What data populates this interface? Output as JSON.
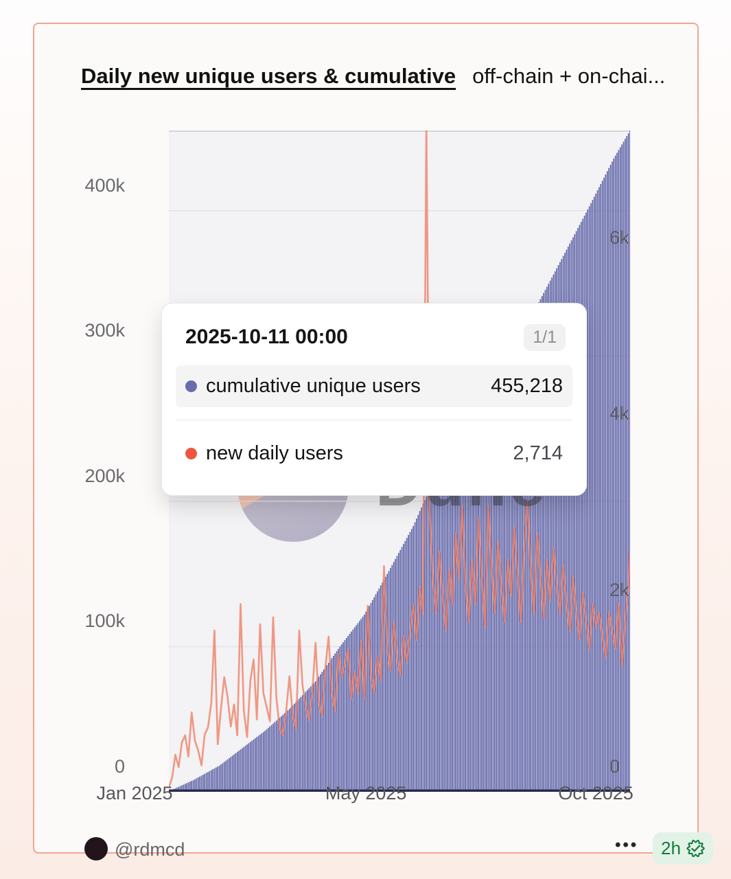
{
  "card": {
    "title": "Daily new unique users & cumulative",
    "subtitle": "off-chain + on-chai...",
    "border_color": "#f2a492"
  },
  "tooltip": {
    "date": "2025-10-11 00:00",
    "pagination": "1/1",
    "rows": [
      {
        "label": "cumulative unique users",
        "value": "455,218",
        "dot_color": "#676cb0",
        "highlighted": true
      },
      {
        "label": "new daily users",
        "value": "2,714",
        "dot_color": "#f0563d",
        "highlighted": false
      }
    ]
  },
  "watermark": {
    "text": "Dune"
  },
  "footer": {
    "handle": "@rdmcd",
    "menu_icon": "•••",
    "age_badge": "2h",
    "badge_icon": "verified-seal-check",
    "badge_color": "#187a42"
  },
  "chart_data": {
    "type": "combo",
    "title": "Daily new unique users & cumulative",
    "x_start_date": "2025-01-01",
    "x_end_date": "2025-10-11",
    "x_days": 283,
    "x_ticks": [
      {
        "label": "Jan 2025",
        "day": 0
      },
      {
        "label": "May 2025",
        "day": 142
      },
      {
        "label": "Oct 2025",
        "day": 283
      }
    ],
    "left_axis": {
      "max": 455218,
      "ticks": [
        {
          "label": "0",
          "value": 0
        },
        {
          "label": "100k",
          "value": 100000
        },
        {
          "label": "200k",
          "value": 200000
        },
        {
          "label": "300k",
          "value": 300000
        },
        {
          "label": "400k",
          "value": 400000
        }
      ]
    },
    "right_axis": {
      "max": 7500,
      "ticks": [
        {
          "label": "0",
          "value": 0
        },
        {
          "label": "2k",
          "value": 2000
        },
        {
          "label": "4k",
          "value": 4000
        },
        {
          "label": "6k",
          "value": 6000
        }
      ]
    },
    "grid": true,
    "legend_position": "tooltip-only",
    "series": [
      {
        "name": "cumulative unique users",
        "type": "area-bars",
        "axis": "left",
        "color": "#565ba3",
        "final_value": 455218,
        "anchors": [
          [
            0,
            400
          ],
          [
            15,
            8000
          ],
          [
            31,
            18000
          ],
          [
            45,
            30000
          ],
          [
            59,
            42000
          ],
          [
            74,
            57000
          ],
          [
            90,
            76000
          ],
          [
            105,
            100000
          ],
          [
            120,
            122000
          ],
          [
            135,
            152000
          ],
          [
            150,
            183000
          ],
          [
            159,
            206000
          ],
          [
            166,
            221000
          ],
          [
            181,
            250000
          ],
          [
            196,
            278000
          ],
          [
            212,
            306000
          ],
          [
            227,
            337000
          ],
          [
            243,
            371000
          ],
          [
            258,
            403000
          ],
          [
            273,
            436000
          ],
          [
            283,
            455218
          ]
        ]
      },
      {
        "name": "new daily users",
        "type": "line",
        "axis": "right",
        "color": "#ef8066",
        "opacity": 0.8,
        "final_value": 2714,
        "sample_step_days": 2,
        "values": [
          50,
          160,
          420,
          280,
          560,
          640,
          400,
          900,
          580,
          470,
          300,
          650,
          730,
          1000,
          1830,
          540,
          950,
          1300,
          1080,
          740,
          990,
          640,
          2130,
          920,
          620,
          1260,
          1500,
          820,
          1900,
          1120,
          960,
          800,
          1980,
          1060,
          720,
          640,
          920,
          1310,
          860,
          710,
          1830,
          1210,
          960,
          810,
          1120,
          1690,
          1010,
          860,
          1400,
          1760,
          1120,
          920,
          1560,
          1310,
          1450,
          1620,
          1060,
          1360,
          1120,
          1710,
          1060,
          2110,
          1320,
          1130,
          1520,
          1270,
          2560,
          1620,
          1370,
          1920,
          1520,
          1320,
          1760,
          1470,
          1820,
          2120,
          1720,
          2320,
          2020,
          7600,
          3230,
          2420,
          2030,
          2720,
          2230,
          1830,
          2520,
          2130,
          2930,
          2430,
          3240,
          2330,
          1930,
          2630,
          2130,
          3100,
          2430,
          1870,
          3240,
          2530,
          2030,
          2830,
          2330,
          1930,
          2630,
          2230,
          3000,
          2430,
          1930,
          2730,
          3300,
          2530,
          2030,
          2930,
          2430,
          1970,
          2630,
          2170,
          2760,
          2330,
          2030,
          2560,
          2130,
          1830,
          2430,
          2030,
          1730,
          2260,
          1930,
          1630,
          2130,
          1870,
          2030,
          1770,
          1530,
          2030,
          1830,
          1630,
          2130,
          1430,
          1930,
          2330,
          2714
        ]
      }
    ]
  }
}
